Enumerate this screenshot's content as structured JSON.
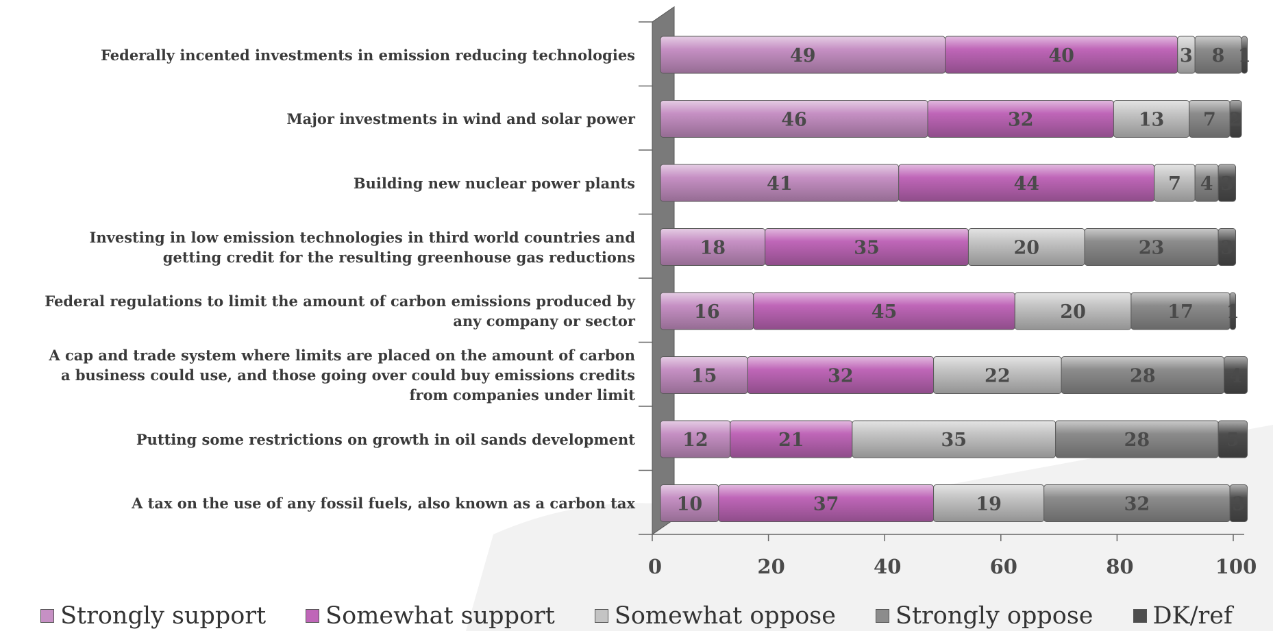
{
  "chart_data": {
    "type": "bar",
    "orientation": "horizontal",
    "stacked": true,
    "categories": [
      "Federally incented investments in emission reducing technologies",
      "Major investments in wind and solar power",
      "Building new nuclear power plants",
      "Investing in low emission technologies in third world countries and\ngetting credit for the resulting greenhouse gas reductions",
      "Federal regulations to limit the amount of carbon emissions produced by\nany company or sector",
      "A cap and trade system where limits are placed on the amount of carbon\na business could use, and those going over could buy emissions credits\nfrom companies under limit",
      "Putting some restrictions on growth in oil sands development",
      "A tax on the use of any fossil fuels, also known as a carbon tax"
    ],
    "series": [
      {
        "name": "Strongly support",
        "color": "#c690c4",
        "values": [
          49,
          46,
          41,
          18,
          16,
          15,
          12,
          10
        ]
      },
      {
        "name": "Somewhat support",
        "color": "#bf66b8",
        "values": [
          40,
          32,
          44,
          35,
          45,
          32,
          21,
          37
        ]
      },
      {
        "name": "Somewhat oppose",
        "color": "#c4c4c4",
        "values": [
          3,
          13,
          7,
          20,
          20,
          22,
          35,
          19
        ]
      },
      {
        "name": "Strongly oppose",
        "color": "#8c8c8c",
        "values": [
          8,
          7,
          4,
          23,
          17,
          28,
          28,
          32
        ]
      },
      {
        "name": "DK/ref",
        "color": "#4e4e4e",
        "values": [
          1,
          2,
          3,
          3,
          1,
          4,
          5,
          3
        ]
      }
    ],
    "xlim": [
      0,
      100
    ],
    "xticks": [
      "0",
      "20",
      "40",
      "60",
      "80",
      "100"
    ],
    "grid": false,
    "legend_position": "bottom"
  }
}
